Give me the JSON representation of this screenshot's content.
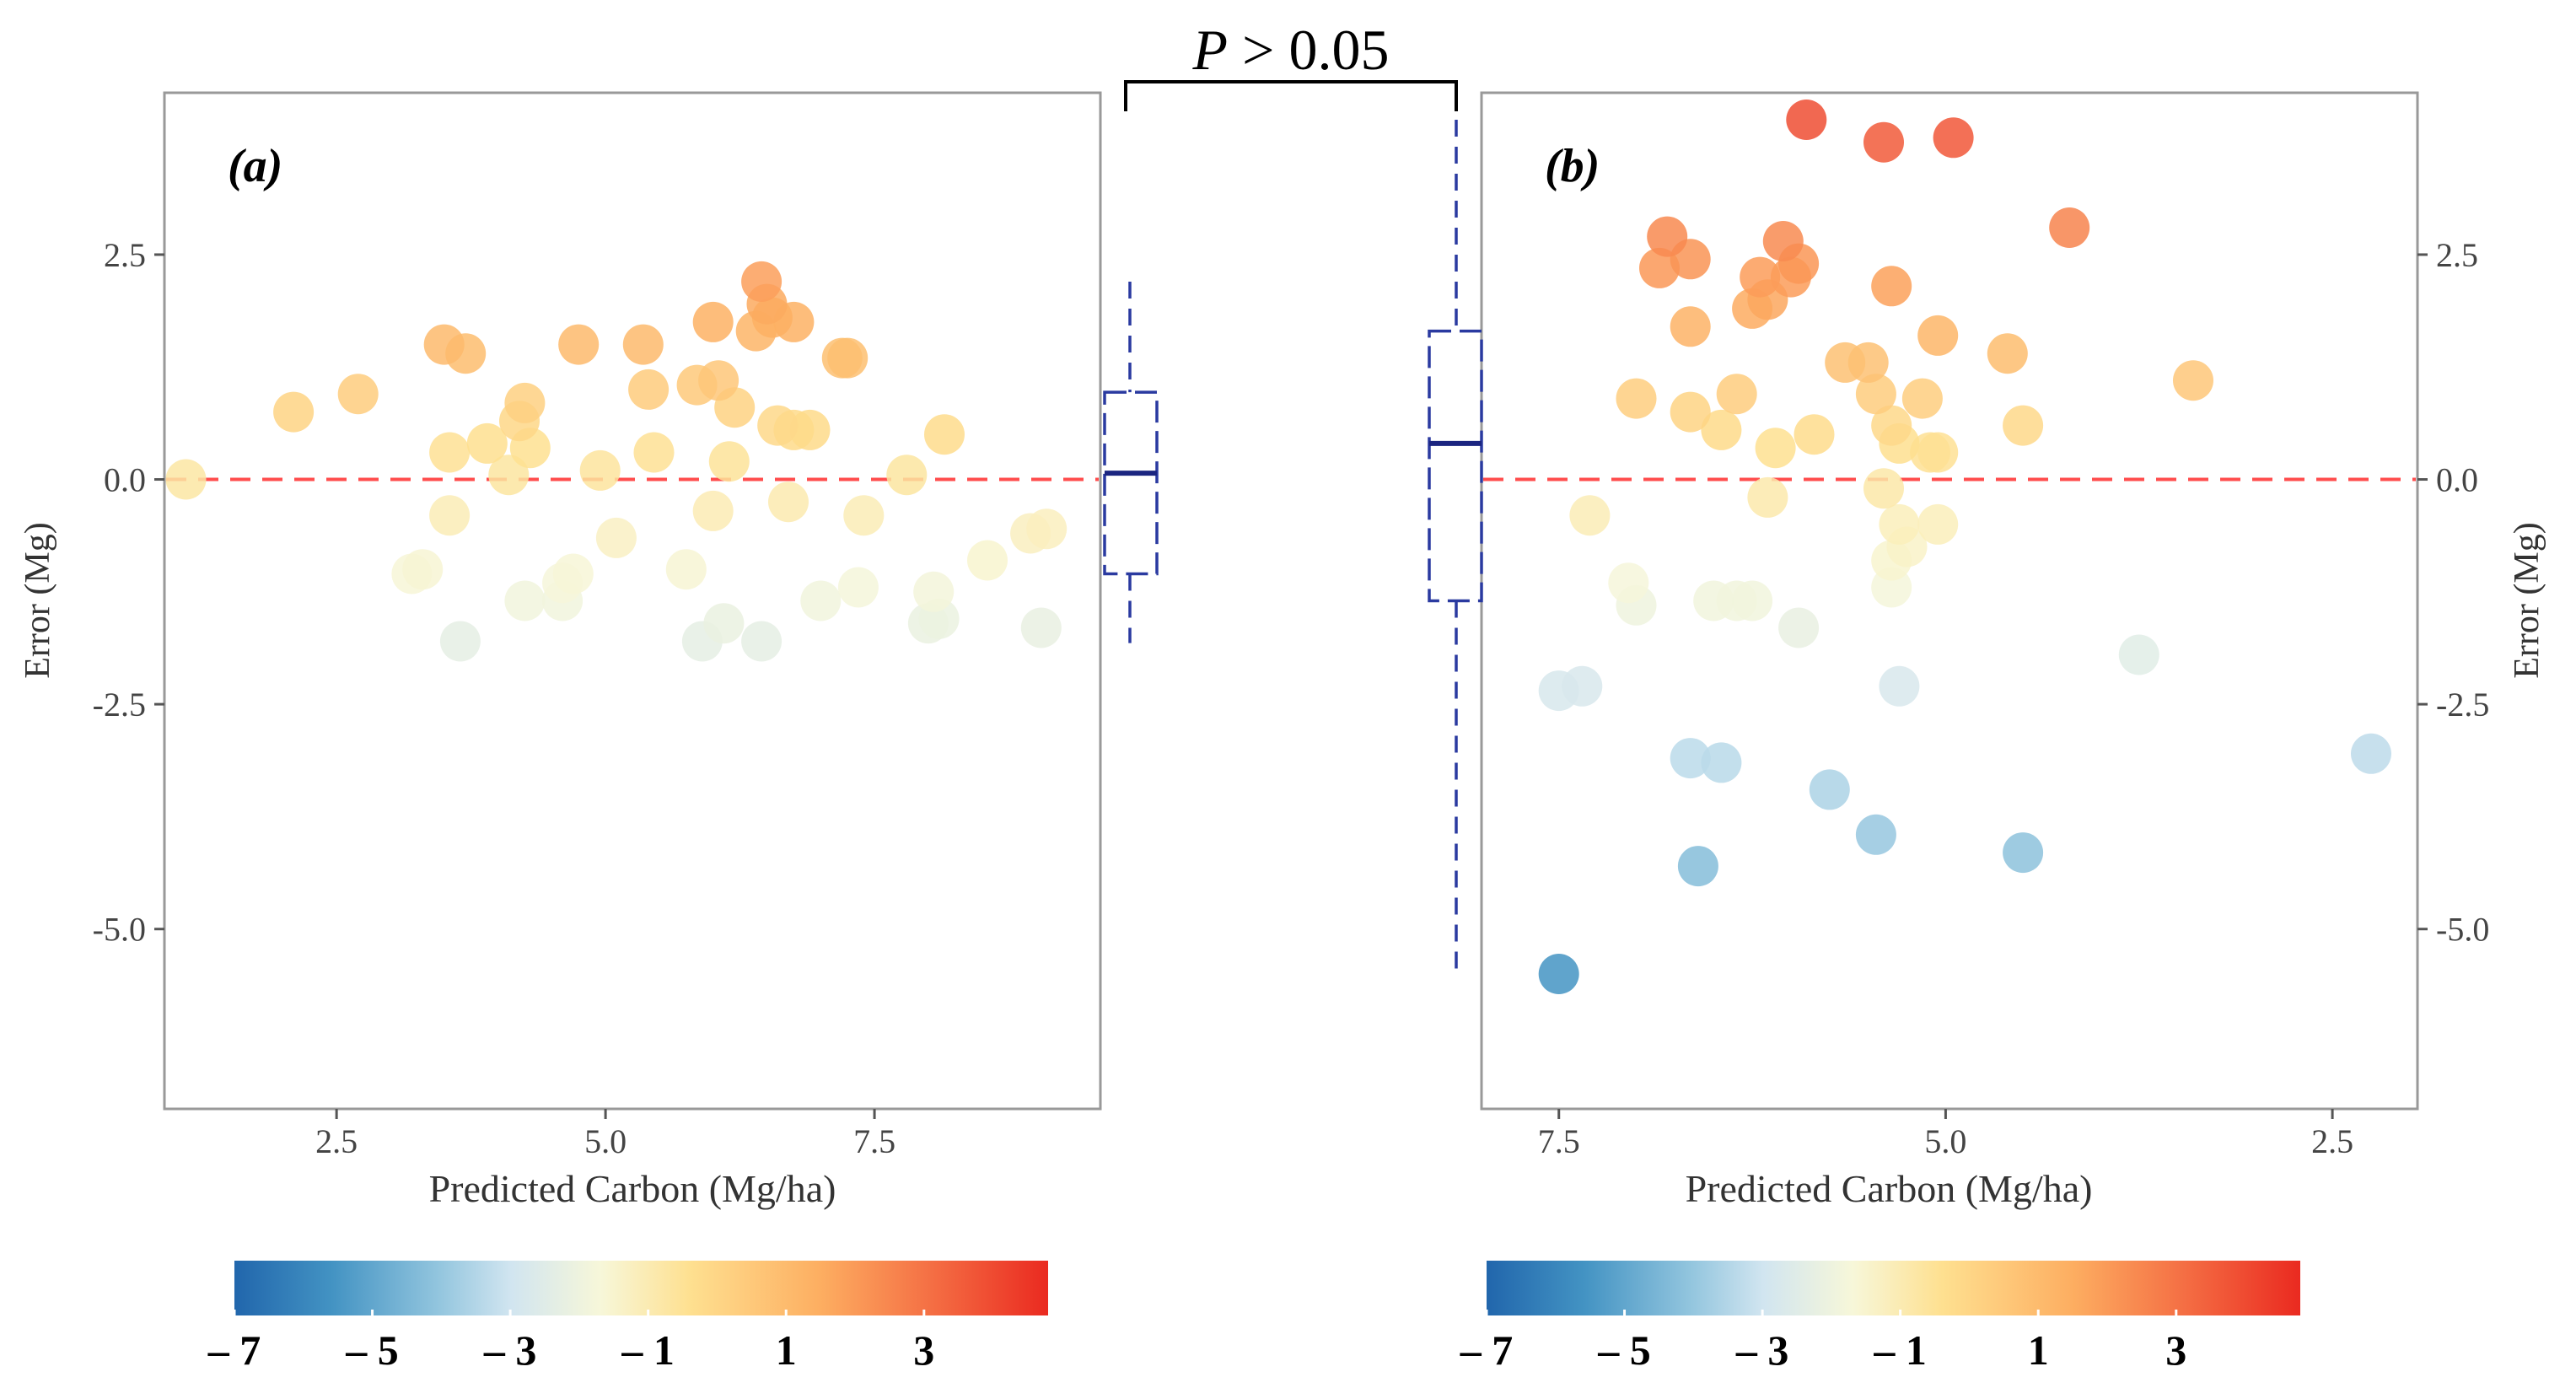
{
  "figure": {
    "significance_label": {
      "p_symbol": "P",
      "rest": " > 0.05"
    },
    "colors": {
      "scale": [
        "#2166ac",
        "#4393c3",
        "#92c5de",
        "#d1e5f0",
        "#f7f7d9",
        "#fee090",
        "#fdae61",
        "#f46d43",
        "#ea2a20"
      ],
      "reference_line": "#ff4d4d",
      "box": "#2a3aa0",
      "frame": "#999999"
    }
  },
  "chart_data": [
    {
      "type": "scatter",
      "panel_label": "(a)",
      "xlabel": "Predicted Carbon (Mg/ha)",
      "ylabel": "Error (Mg)",
      "xlim": [
        0.9,
        9.6
      ],
      "ylim": [
        -7,
        4.3
      ],
      "x_reversed": false,
      "xticks": [
        2.5,
        5.0,
        7.5
      ],
      "xtick_labels": [
        "2.5",
        "5.0",
        "7.5"
      ],
      "yticks": [
        2.5,
        0.0,
        -2.5,
        -5.0
      ],
      "ytick_labels": [
        "2.5",
        "0.0",
        "-2.5",
        "-5.0"
      ],
      "y_axis_side": "left",
      "reference_line_y": 0,
      "colorbar": {
        "min": -7,
        "max": 4.8,
        "ticks": [
          -7,
          -5,
          -3,
          -1,
          1,
          3
        ],
        "tick_labels": [
          "– 7",
          "– 5",
          "– 3",
          "– 1",
          "1",
          "3"
        ]
      },
      "points": [
        {
          "x": 1.1,
          "y": 0.0
        },
        {
          "x": 2.1,
          "y": 0.75
        },
        {
          "x": 2.7,
          "y": 0.95
        },
        {
          "x": 3.2,
          "y": -1.05
        },
        {
          "x": 3.3,
          "y": -1.0
        },
        {
          "x": 3.5,
          "y": 1.5
        },
        {
          "x": 3.55,
          "y": 0.3
        },
        {
          "x": 3.55,
          "y": -0.4
        },
        {
          "x": 3.65,
          "y": -1.8
        },
        {
          "x": 3.7,
          "y": 1.4
        },
        {
          "x": 3.9,
          "y": 0.4
        },
        {
          "x": 4.1,
          "y": 0.05
        },
        {
          "x": 4.2,
          "y": 0.65
        },
        {
          "x": 4.25,
          "y": 0.85
        },
        {
          "x": 4.3,
          "y": 0.35
        },
        {
          "x": 4.25,
          "y": -1.35
        },
        {
          "x": 4.6,
          "y": -1.15
        },
        {
          "x": 4.6,
          "y": -1.35
        },
        {
          "x": 4.7,
          "y": -1.05
        },
        {
          "x": 4.75,
          "y": 1.5
        },
        {
          "x": 4.95,
          "y": 0.1
        },
        {
          "x": 5.1,
          "y": -0.65
        },
        {
          "x": 5.35,
          "y": 1.5
        },
        {
          "x": 5.4,
          "y": 1.0
        },
        {
          "x": 5.45,
          "y": 0.3
        },
        {
          "x": 5.75,
          "y": -1.0
        },
        {
          "x": 5.85,
          "y": 1.05
        },
        {
          "x": 5.9,
          "y": -1.8
        },
        {
          "x": 6.0,
          "y": 1.75
        },
        {
          "x": 6.0,
          "y": -0.35
        },
        {
          "x": 6.05,
          "y": 1.1
        },
        {
          "x": 6.1,
          "y": -1.6
        },
        {
          "x": 6.15,
          "y": 0.2
        },
        {
          "x": 6.2,
          "y": 0.8
        },
        {
          "x": 6.4,
          "y": 1.65
        },
        {
          "x": 6.45,
          "y": 2.2
        },
        {
          "x": 6.5,
          "y": 1.95
        },
        {
          "x": 6.55,
          "y": 1.8
        },
        {
          "x": 6.45,
          "y": -1.8
        },
        {
          "x": 6.6,
          "y": 0.6
        },
        {
          "x": 6.7,
          "y": -0.25
        },
        {
          "x": 6.75,
          "y": 1.75
        },
        {
          "x": 6.75,
          "y": 0.55
        },
        {
          "x": 6.9,
          "y": 0.55
        },
        {
          "x": 7.0,
          "y": -1.35
        },
        {
          "x": 7.2,
          "y": 1.35
        },
        {
          "x": 7.25,
          "y": 1.35
        },
        {
          "x": 7.35,
          "y": -1.2
        },
        {
          "x": 7.4,
          "y": -0.4
        },
        {
          "x": 7.8,
          "y": 0.05
        },
        {
          "x": 8.0,
          "y": -1.6
        },
        {
          "x": 8.05,
          "y": -1.25
        },
        {
          "x": 8.1,
          "y": -1.55
        },
        {
          "x": 8.15,
          "y": 0.5
        },
        {
          "x": 8.55,
          "y": -0.9
        },
        {
          "x": 8.95,
          "y": -0.6
        },
        {
          "x": 9.1,
          "y": -0.55
        },
        {
          "x": 9.05,
          "y": -1.65
        }
      ],
      "boxplot": {
        "side": "right",
        "q1": -1.05,
        "median": 0.07,
        "q3": 0.97,
        "whisker_low": -1.82,
        "whisker_high": 2.2
      }
    },
    {
      "type": "scatter",
      "panel_label": "(b)",
      "xlabel": "Predicted Carbon (Mg/ha)",
      "ylabel": "Error (Mg)",
      "xlim": [
        8.0,
        1.95
      ],
      "ylim": [
        -7,
        4.3
      ],
      "x_reversed": true,
      "xticks": [
        7.5,
        5.0,
        2.5
      ],
      "xtick_labels": [
        "7.5",
        "5.0",
        "2.5"
      ],
      "yticks": [
        2.5,
        0.0,
        -2.5,
        -5.0
      ],
      "ytick_labels": [
        "2.5",
        "0.0",
        "-2.5",
        "-5.0"
      ],
      "y_axis_side": "right",
      "reference_line_y": 0,
      "colorbar": {
        "min": -7,
        "max": 4.8,
        "ticks": [
          -7,
          -5,
          -3,
          -1,
          1,
          3
        ],
        "tick_labels": [
          "– 7",
          "– 5",
          "– 3",
          "– 1",
          "1",
          "3"
        ]
      },
      "points": [
        {
          "x": 7.5,
          "y": -5.5
        },
        {
          "x": 7.5,
          "y": -2.35
        },
        {
          "x": 7.35,
          "y": -2.3
        },
        {
          "x": 7.3,
          "y": -0.4
        },
        {
          "x": 7.05,
          "y": -1.15
        },
        {
          "x": 7.0,
          "y": 0.9
        },
        {
          "x": 7.0,
          "y": -1.4
        },
        {
          "x": 6.85,
          "y": 2.35
        },
        {
          "x": 6.8,
          "y": 2.7
        },
        {
          "x": 6.65,
          "y": 2.45
        },
        {
          "x": 6.65,
          "y": 1.7
        },
        {
          "x": 6.65,
          "y": 0.75
        },
        {
          "x": 6.65,
          "y": -3.1
        },
        {
          "x": 6.6,
          "y": -4.3
        },
        {
          "x": 6.5,
          "y": -1.35
        },
        {
          "x": 6.45,
          "y": 0.55
        },
        {
          "x": 6.45,
          "y": -3.15
        },
        {
          "x": 6.35,
          "y": 0.95
        },
        {
          "x": 6.35,
          "y": -1.35
        },
        {
          "x": 6.25,
          "y": 1.9
        },
        {
          "x": 6.25,
          "y": -1.35
        },
        {
          "x": 6.2,
          "y": 2.25
        },
        {
          "x": 6.15,
          "y": 2.0
        },
        {
          "x": 6.15,
          "y": -0.2
        },
        {
          "x": 6.1,
          "y": 0.35
        },
        {
          "x": 6.05,
          "y": 2.65
        },
        {
          "x": 6.0,
          "y": 2.25
        },
        {
          "x": 5.95,
          "y": 2.4
        },
        {
          "x": 5.95,
          "y": -1.65
        },
        {
          "x": 5.9,
          "y": 4.0
        },
        {
          "x": 5.85,
          "y": 0.5
        },
        {
          "x": 5.75,
          "y": -3.45
        },
        {
          "x": 5.65,
          "y": 1.3
        },
        {
          "x": 5.5,
          "y": 1.3
        },
        {
          "x": 5.45,
          "y": -3.95
        },
        {
          "x": 5.45,
          "y": 0.95
        },
        {
          "x": 5.4,
          "y": 3.75
        },
        {
          "x": 5.35,
          "y": 2.15
        },
        {
          "x": 5.35,
          "y": 0.6
        },
        {
          "x": 5.3,
          "y": 0.4
        },
        {
          "x": 5.3,
          "y": -0.5
        },
        {
          "x": 5.35,
          "y": -0.9
        },
        {
          "x": 5.35,
          "y": -1.2
        },
        {
          "x": 5.3,
          "y": -2.3
        },
        {
          "x": 5.4,
          "y": -0.1
        },
        {
          "x": 5.25,
          "y": -0.75
        },
        {
          "x": 5.15,
          "y": 0.9
        },
        {
          "x": 5.1,
          "y": 0.3
        },
        {
          "x": 5.05,
          "y": 0.3
        },
        {
          "x": 5.05,
          "y": -0.5
        },
        {
          "x": 5.05,
          "y": 1.6
        },
        {
          "x": 4.95,
          "y": 3.8
        },
        {
          "x": 4.6,
          "y": 1.4
        },
        {
          "x": 4.5,
          "y": 0.6
        },
        {
          "x": 4.5,
          "y": -4.15
        },
        {
          "x": 4.2,
          "y": 2.8
        },
        {
          "x": 3.75,
          "y": -1.95
        },
        {
          "x": 3.4,
          "y": 1.1
        },
        {
          "x": 2.25,
          "y": -3.05
        }
      ],
      "boxplot": {
        "side": "left",
        "q1": -1.35,
        "median": 0.4,
        "q3": 1.65,
        "whisker_low": -5.55,
        "whisker_high": 4.0
      }
    }
  ]
}
